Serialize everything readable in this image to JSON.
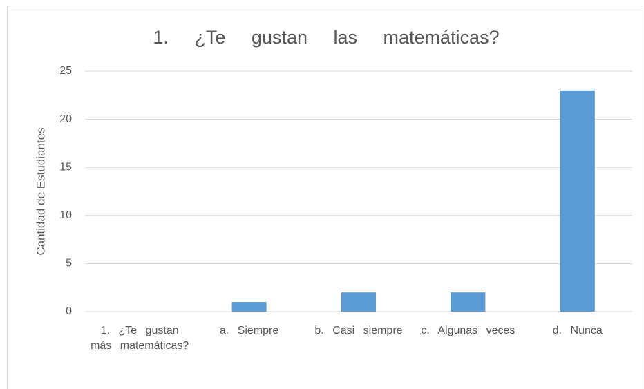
{
  "chart_data": {
    "type": "bar",
    "title": "1. ¿Te gustan las matemáticas?",
    "y_label": "Cantidad de Estudiantes",
    "categories": [
      "1. ¿Te gustan más matemáticas?",
      "a. Siempre",
      "b. Casi siempre",
      "c. Algunas veces",
      "d. Nunca"
    ],
    "values": [
      0,
      1,
      2,
      2,
      23
    ],
    "color": "#5b9bd5",
    "ylim": [
      0,
      25
    ],
    "yticks": [
      0,
      5,
      10,
      15,
      20,
      25
    ],
    "grid": true
  }
}
